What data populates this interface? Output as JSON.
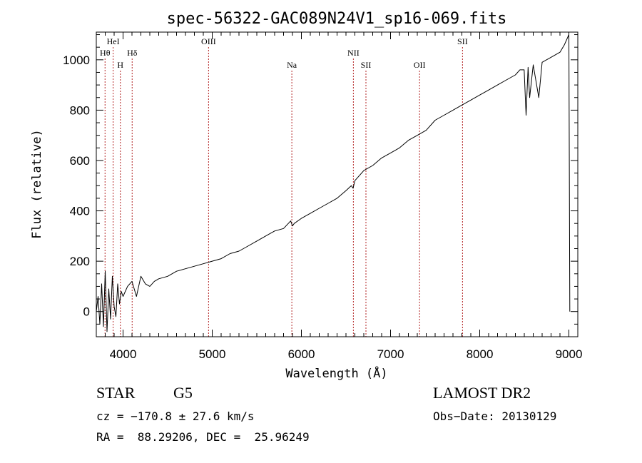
{
  "chart_data": {
    "type": "line",
    "title": "spec-56322-GAC089N24V1_sp16-069.fits",
    "xlabel": "Wavelength (Å)",
    "ylabel": "Flux (relative)",
    "xlim": [
      3700,
      9100
    ],
    "ylim": [
      -100,
      1110
    ],
    "xticks": [
      4000,
      5000,
      6000,
      7000,
      8000,
      9000
    ],
    "yticks": [
      0,
      200,
      400,
      600,
      800,
      1000
    ],
    "grid": false,
    "line_color": "#000000",
    "marker_color": "#b22222",
    "series": [
      {
        "x": [
          3700,
          3720,
          3740,
          3760,
          3780,
          3800,
          3820,
          3840,
          3860,
          3880,
          3900,
          3920,
          3940,
          3960,
          3980,
          4000,
          4050,
          4100,
          4150,
          4200,
          4250,
          4300,
          4350,
          4400,
          4500,
          4600,
          4700,
          4800,
          4900,
          5000,
          5100,
          5200,
          5300,
          5400,
          5500,
          5600,
          5700,
          5800,
          5880,
          5900,
          5920,
          6000,
          6100,
          6200,
          6300,
          6400,
          6500,
          6560,
          6580,
          6600,
          6700,
          6800,
          6900,
          7000,
          7100,
          7200,
          7300,
          7400,
          7500,
          7600,
          7700,
          7800,
          7900,
          8000,
          8100,
          8200,
          8300,
          8400,
          8450,
          8498,
          8520,
          8542,
          8560,
          8600,
          8662,
          8700,
          8800,
          8900,
          8950,
          9000,
          9010
        ],
        "y": [
          0,
          60,
          -50,
          110,
          -60,
          160,
          -80,
          90,
          -30,
          140,
          20,
          -20,
          110,
          30,
          80,
          60,
          100,
          120,
          60,
          140,
          110,
          100,
          120,
          130,
          140,
          160,
          170,
          180,
          190,
          200,
          210,
          230,
          240,
          260,
          280,
          300,
          320,
          330,
          360,
          340,
          350,
          370,
          390,
          410,
          430,
          450,
          480,
          500,
          490,
          520,
          560,
          580,
          610,
          630,
          650,
          680,
          700,
          720,
          760,
          780,
          800,
          820,
          840,
          860,
          880,
          900,
          920,
          940,
          960,
          960,
          780,
          970,
          850,
          980,
          850,
          990,
          1010,
          1030,
          1060,
          1100,
          0
        ]
      }
    ],
    "line_markers": [
      {
        "label": "Hθ",
        "x": 3798,
        "row": 2
      },
      {
        "label": "HeI",
        "x": 3889,
        "row": 1
      },
      {
        "label": "H",
        "x": 3970,
        "row": 3
      },
      {
        "label": "Hδ",
        "x": 4102,
        "row": 2
      },
      {
        "label": "OIII",
        "x": 4959,
        "row": 1
      },
      {
        "label": "Na",
        "x": 5893,
        "row": 3
      },
      {
        "label": "NII",
        "x": 6583,
        "row": 2
      },
      {
        "label": "SII",
        "x": 6724,
        "row": 3
      },
      {
        "label": "OII",
        "x": 7325,
        "row": 3
      },
      {
        "label": "SII",
        "x": 7807,
        "row": 1
      }
    ]
  },
  "info": {
    "class_label": "STAR",
    "subclass_label": "G5",
    "survey": "LAMOST DR2",
    "cz": "cz = −170.8 ± 27.6 km/s",
    "obs_date": "Obs−Date: 20130129",
    "coords": "RA =  88.29206, DEC =  25.96249"
  }
}
